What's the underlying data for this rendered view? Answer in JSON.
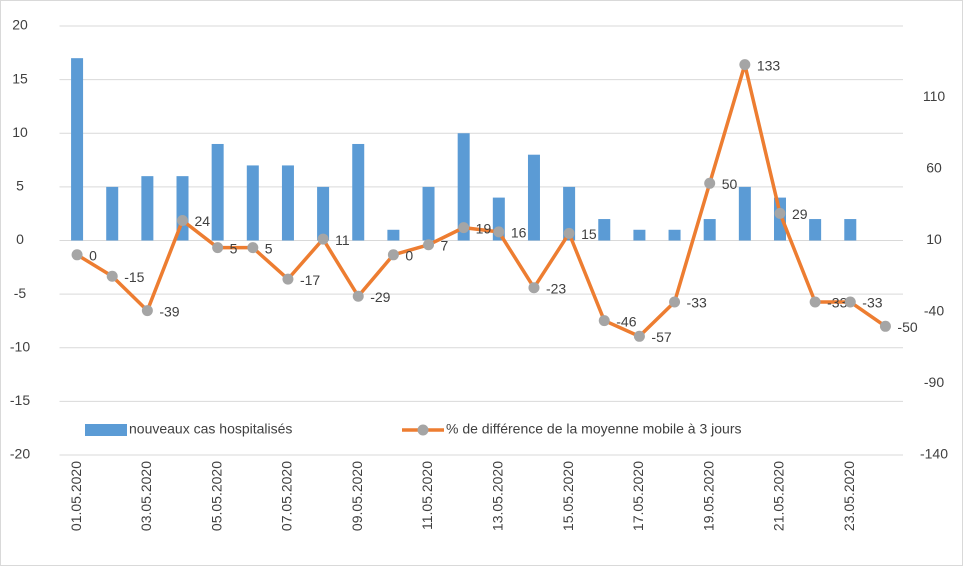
{
  "chart_data": {
    "type": "bar_line",
    "categories": [
      "01.05.2020",
      null,
      "03.05.2020",
      null,
      "05.05.2020",
      null,
      "07.05.2020",
      null,
      "09.05.2020",
      null,
      "11.05.2020",
      null,
      "13.05.2020",
      null,
      "15.05.2020",
      null,
      "17.05.2020",
      null,
      "19.05.2020",
      null,
      "21.05.2020",
      null,
      "23.05.2020",
      null
    ],
    "series": [
      {
        "name": "nouveaux cas hospitalisés",
        "type": "bar",
        "color": "#5b9bd5",
        "values": [
          17,
          5,
          6,
          6,
          9,
          7,
          7,
          5,
          9,
          1,
          5,
          10,
          4,
          8,
          5,
          2,
          1,
          1,
          2,
          5,
          4,
          2,
          2,
          0
        ]
      },
      {
        "name": "% de différence de la moyenne mobile à 3 jours",
        "type": "line",
        "axis": "y2",
        "color": "#ed7d31",
        "marker_color": "#a5a5a5",
        "values": [
          0,
          -15,
          -39,
          24,
          5,
          5,
          -17,
          11,
          -29,
          0,
          7,
          19,
          16,
          -23,
          15,
          -46,
          -57,
          -33,
          50,
          133,
          29,
          -33,
          -33,
          -50
        ]
      }
    ],
    "ylim": [
      -20,
      20
    ],
    "yticks": [
      -20,
      -15,
      -10,
      -5,
      0,
      5,
      10,
      15,
      20
    ],
    "y2lim": [
      -140,
      160
    ],
    "y2ticks": [
      -140,
      -90,
      -40,
      10,
      60,
      110
    ],
    "grid": true,
    "legend": "bottom-left"
  }
}
